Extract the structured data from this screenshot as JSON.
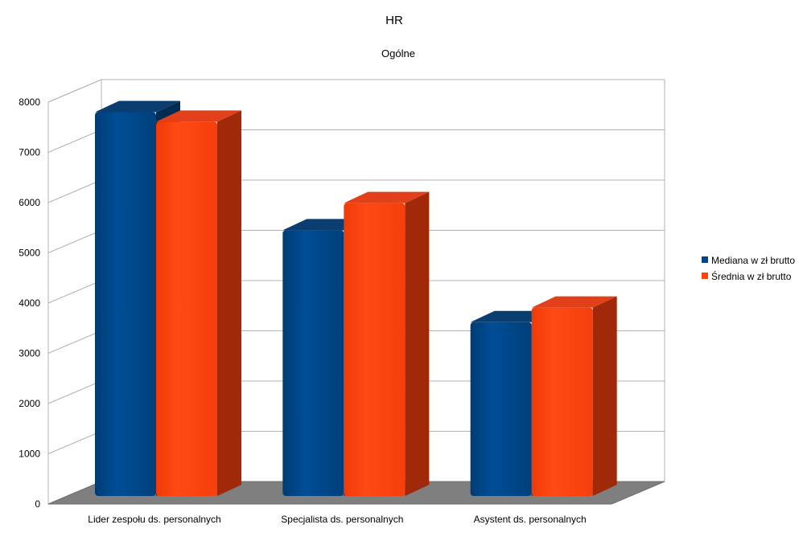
{
  "chart_data": {
    "type": "bar",
    "title": "HR",
    "subtitle": "Ogólne",
    "categories": [
      "Lider zespołu ds. personalnych",
      "Specjalista ds. personalnych",
      "Asystent ds. personalnych"
    ],
    "series": [
      {
        "name": "Mediana w zł brutto",
        "values": [
          7800,
          5450,
          3620
        ],
        "color": "#004586"
      },
      {
        "name": "Średnia w zł brutto",
        "values": [
          7610,
          5990,
          3910
        ],
        "color": "#ff420e"
      }
    ],
    "ylim": [
      0,
      8000
    ],
    "yticks": [
      0,
      1000,
      2000,
      3000,
      4000,
      5000,
      6000,
      7000,
      8000
    ],
    "grid": true,
    "legend": "right",
    "three_d": true,
    "side_colors": [
      "#012c52",
      "#a0290a"
    ],
    "floor_color": "#7f7f7f"
  }
}
